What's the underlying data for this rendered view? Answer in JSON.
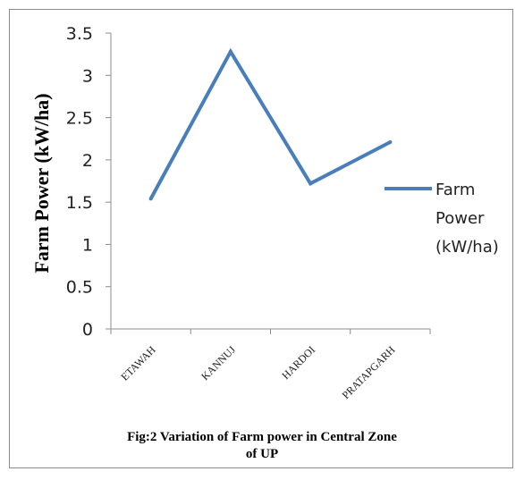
{
  "chart_data": {
    "type": "line",
    "categories": [
      "ETAWAH",
      "KANNUJ",
      "HARDOI",
      "PRATAPGARH"
    ],
    "series": [
      {
        "name": "Farm Power (kW/ha)",
        "values": [
          1.54,
          3.28,
          1.72,
          2.21
        ]
      }
    ],
    "ylabel": "Farm Power (kW/ha)",
    "xlabel": "",
    "ylim": [
      0,
      3.5
    ],
    "yticks": [
      "0",
      "0.5",
      "1",
      "1.5",
      "2",
      "2.5",
      "3",
      "3.5"
    ],
    "grid": false,
    "legend_position": "right",
    "line_color": "#4a7ebb"
  },
  "legend": {
    "lines": [
      "Farm",
      "Power",
      "(kW/ha)"
    ]
  },
  "caption": {
    "lines": [
      "Fig:2 Variation of Farm power in Central Zone",
      "of UP"
    ]
  }
}
